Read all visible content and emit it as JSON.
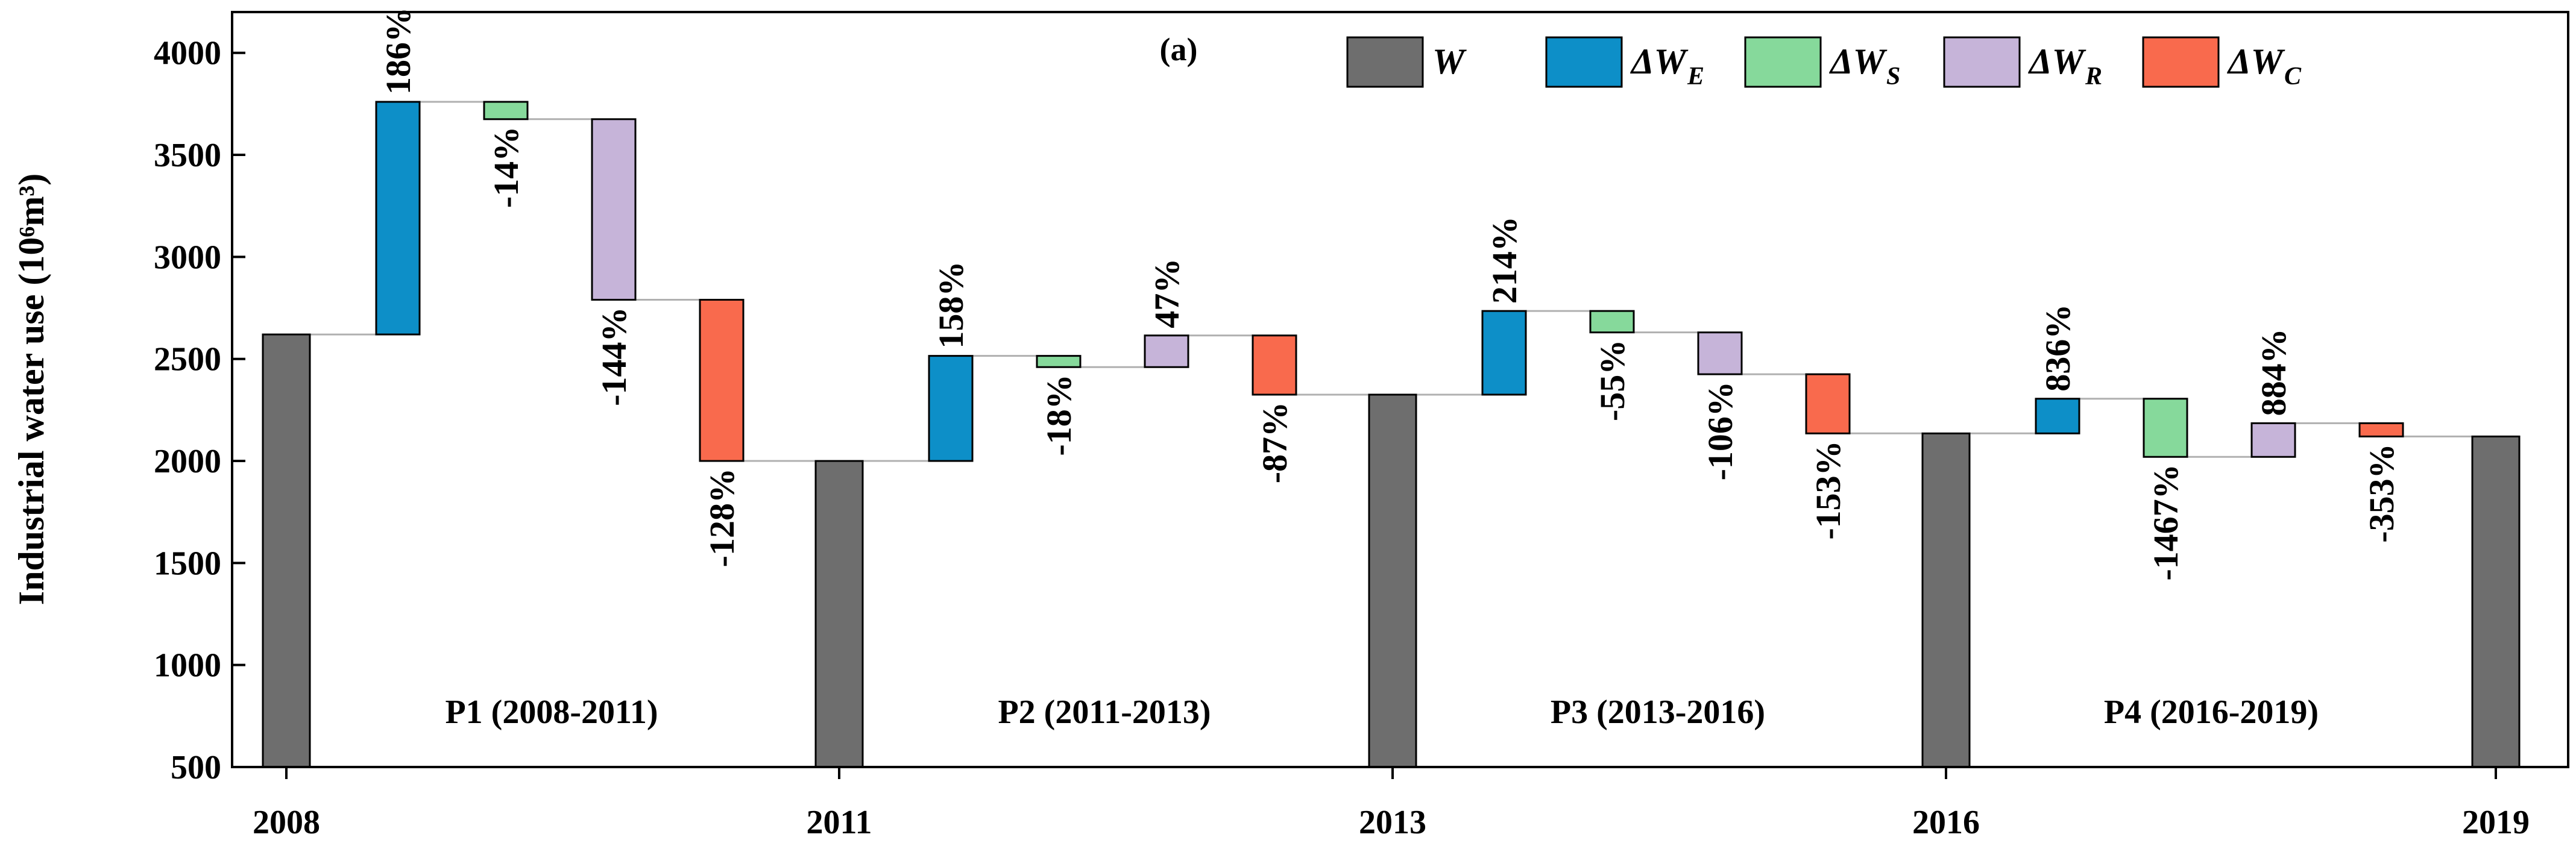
{
  "chart_data": {
    "type": "waterfall",
    "panel_label": "(a)",
    "ylabel": "Industrial water use (10⁶m³)",
    "ylim": [
      500,
      4200
    ],
    "yticks": [
      500,
      1000,
      1500,
      2000,
      2500,
      3000,
      3500,
      4000
    ],
    "year_ticks": [
      "2008",
      "2011",
      "2013",
      "2016",
      "2019"
    ],
    "legend": [
      {
        "key": "W",
        "label": "W",
        "sub": "",
        "color": "#6e6e6e"
      },
      {
        "key": "E",
        "label": "ΔW",
        "sub": "E",
        "color": "#0d8fc8"
      },
      {
        "key": "S",
        "label": "ΔW",
        "sub": "S",
        "color": "#86d99b"
      },
      {
        "key": "R",
        "label": "ΔW",
        "sub": "R",
        "color": "#c6b4d9"
      },
      {
        "key": "C",
        "label": "ΔW",
        "sub": "C",
        "color": "#f96a4d"
      }
    ],
    "totals": [
      {
        "year": "2008",
        "value": 2620
      },
      {
        "year": "2011",
        "value": 2000
      },
      {
        "year": "2013",
        "value": 2325
      },
      {
        "year": "2016",
        "value": 2135
      },
      {
        "year": "2019",
        "value": 2120
      }
    ],
    "periods": [
      {
        "label": "P1 (2008-2011)",
        "effects": [
          {
            "key": "E",
            "from": 2620,
            "to": 3760,
            "pct": "186%"
          },
          {
            "key": "S",
            "from": 3760,
            "to": 3675,
            "pct": "-14%"
          },
          {
            "key": "R",
            "from": 3675,
            "to": 2790,
            "pct": "-144%"
          },
          {
            "key": "C",
            "from": 2790,
            "to": 2000,
            "pct": "-128%"
          }
        ]
      },
      {
        "label": "P2 (2011-2013)",
        "effects": [
          {
            "key": "E",
            "from": 2000,
            "to": 2515,
            "pct": "158%"
          },
          {
            "key": "S",
            "from": 2515,
            "to": 2460,
            "pct": "-18%"
          },
          {
            "key": "R",
            "from": 2460,
            "to": 2615,
            "pct": "47%"
          },
          {
            "key": "C",
            "from": 2615,
            "to": 2325,
            "pct": "-87%"
          }
        ]
      },
      {
        "label": "P3 (2013-2016)",
        "effects": [
          {
            "key": "E",
            "from": 2325,
            "to": 2735,
            "pct": "214%"
          },
          {
            "key": "S",
            "from": 2735,
            "to": 2630,
            "pct": "-55%"
          },
          {
            "key": "R",
            "from": 2630,
            "to": 2425,
            "pct": "-106%"
          },
          {
            "key": "C",
            "from": 2425,
            "to": 2135,
            "pct": "-153%"
          }
        ]
      },
      {
        "label": "P4 (2016-2019)",
        "effects": [
          {
            "key": "E",
            "from": 2135,
            "to": 2305,
            "pct": "836%"
          },
          {
            "key": "S",
            "from": 2305,
            "to": 2020,
            "pct": "-1467%"
          },
          {
            "key": "R",
            "from": 2020,
            "to": 2185,
            "pct": "884%"
          },
          {
            "key": "C",
            "from": 2185,
            "to": 2120,
            "pct": "-353%"
          }
        ]
      }
    ]
  }
}
